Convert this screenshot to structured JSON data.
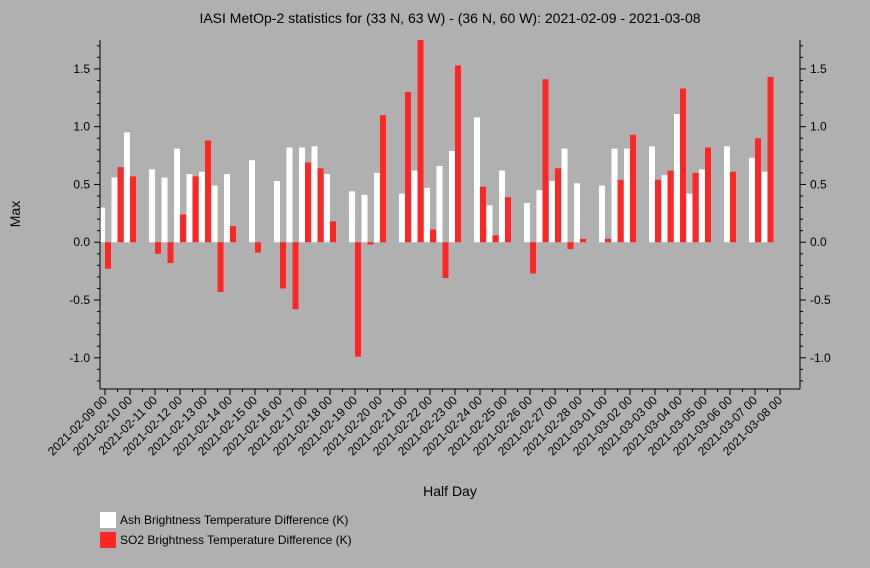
{
  "chart_data": {
    "type": "bar",
    "title": "IASI MetOp-2 statistics for (33 N, 63 W) - (36 N, 60 W): 2021-02-09 - 2021-03-08",
    "xlabel": "Half Day",
    "ylabel": "Max",
    "ylim": [
      -1.27,
      1.75
    ],
    "yticks": [
      "1.5",
      "1.0",
      "0.5",
      "0.0",
      "-0.5",
      "-1.0"
    ],
    "ytick_values": [
      1.5,
      1.0,
      0.5,
      0.0,
      -0.5,
      -1.0
    ],
    "categories": [
      "2021-02-09 00",
      "2021-02-09 12",
      "2021-02-10 00",
      "2021-02-10 12",
      "2021-02-11 00",
      "2021-02-11 12",
      "2021-02-12 00",
      "2021-02-12 12",
      "2021-02-13 00",
      "2021-02-13 12",
      "2021-02-14 00",
      "2021-02-14 12",
      "2021-02-15 00",
      "2021-02-15 12",
      "2021-02-16 00",
      "2021-02-16 12",
      "2021-02-17 00",
      "2021-02-17 12",
      "2021-02-18 00",
      "2021-02-18 12",
      "2021-02-19 00",
      "2021-02-19 12",
      "2021-02-20 00",
      "2021-02-20 12",
      "2021-02-21 00",
      "2021-02-21 12",
      "2021-02-22 00",
      "2021-02-22 12",
      "2021-02-23 00",
      "2021-02-23 12",
      "2021-02-24 00",
      "2021-02-24 12",
      "2021-02-25 00",
      "2021-02-25 12",
      "2021-02-26 00",
      "2021-02-26 12",
      "2021-02-27 00",
      "2021-02-27 12",
      "2021-02-28 00",
      "2021-02-28 12",
      "2021-03-01 00",
      "2021-03-01 12",
      "2021-03-02 00",
      "2021-03-02 12",
      "2021-03-03 00",
      "2021-03-03 12",
      "2021-03-04 00",
      "2021-03-04 12",
      "2021-03-05 00",
      "2021-03-05 12",
      "2021-03-06 00",
      "2021-03-06 12",
      "2021-03-07 00",
      "2021-03-07 12",
      "2021-03-08 00"
    ],
    "tick_labels": [
      "2021-02-09 00",
      "2021-02-10 00",
      "2021-02-11 00",
      "2021-02-12 00",
      "2021-02-13 00",
      "2021-02-14 00",
      "2021-02-15 00",
      "2021-02-16 00",
      "2021-02-17 00",
      "2021-02-18 00",
      "2021-02-19 00",
      "2021-02-20 00",
      "2021-02-21 00",
      "2021-02-22 00",
      "2021-02-23 00",
      "2021-02-24 00",
      "2021-02-25 00",
      "2021-02-26 00",
      "2021-02-27 00",
      "2021-02-28 00",
      "2021-03-01 00",
      "2021-03-02 00",
      "2021-03-03 00",
      "2021-03-04 00",
      "2021-03-05 00",
      "2021-03-06 00",
      "2021-03-07 00",
      "2021-03-08 00"
    ],
    "series": [
      {
        "name": "Ash Brightness Temperature Difference (K)",
        "color": "#ffffff",
        "values": [
          0.3,
          0.56,
          0.95,
          null,
          0.63,
          0.56,
          0.81,
          0.59,
          0.61,
          0.49,
          0.59,
          null,
          0.71,
          null,
          0.53,
          0.82,
          0.82,
          0.83,
          0.59,
          null,
          0.44,
          0.41,
          0.6,
          null,
          0.42,
          0.62,
          0.47,
          0.66,
          0.79,
          null,
          1.08,
          0.32,
          0.62,
          null,
          0.34,
          0.45,
          0.53,
          0.81,
          0.51,
          null,
          0.49,
          0.81,
          0.81,
          null,
          0.83,
          0.58,
          1.11,
          0.42,
          0.63,
          null,
          0.83,
          null,
          0.73,
          0.61,
          null
        ]
      },
      {
        "name": "SO2 Brightness Temperature Difference (K)",
        "color": "#ff2626",
        "values": [
          -0.23,
          0.65,
          0.57,
          null,
          -0.1,
          -0.18,
          0.24,
          0.57,
          0.88,
          -0.43,
          0.14,
          null,
          -0.09,
          null,
          -0.4,
          -0.58,
          0.69,
          0.64,
          0.18,
          null,
          -0.99,
          -0.02,
          1.1,
          null,
          1.3,
          1.75,
          0.11,
          -0.31,
          1.53,
          null,
          0.48,
          0.06,
          0.39,
          null,
          -0.27,
          1.41,
          0.64,
          -0.06,
          0.03,
          null,
          0.03,
          0.54,
          0.93,
          null,
          0.54,
          0.62,
          1.33,
          0.6,
          0.82,
          null,
          0.61,
          null,
          0.9,
          1.43,
          null
        ]
      }
    ],
    "grid": false,
    "legend_position": "bottom-left"
  }
}
